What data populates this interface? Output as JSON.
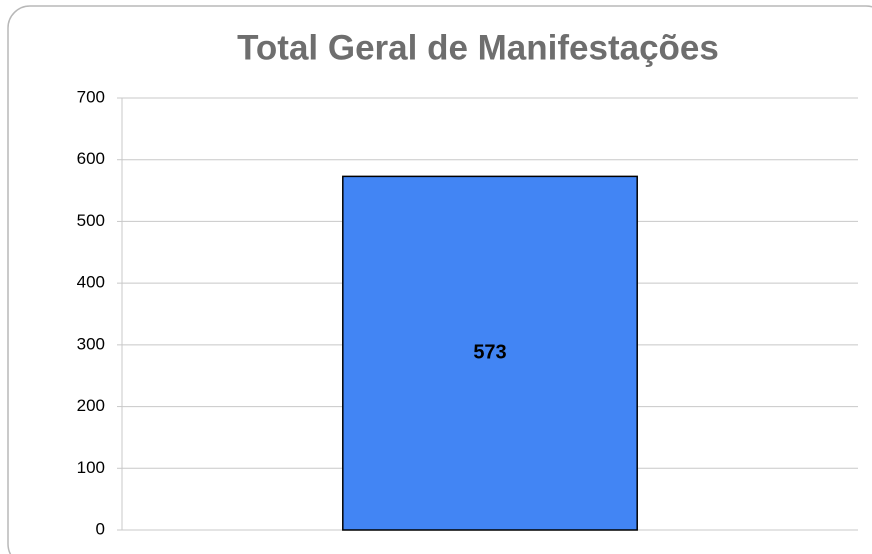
{
  "chart_data": {
    "type": "bar",
    "title": "Total Geral de Manifestações",
    "categories": [
      null
    ],
    "values": [
      573
    ],
    "color": "#4285f4",
    "ylim": [
      0,
      700
    ],
    "yticks": [
      0,
      100,
      200,
      300,
      400,
      500,
      600,
      700
    ],
    "grid": true
  }
}
